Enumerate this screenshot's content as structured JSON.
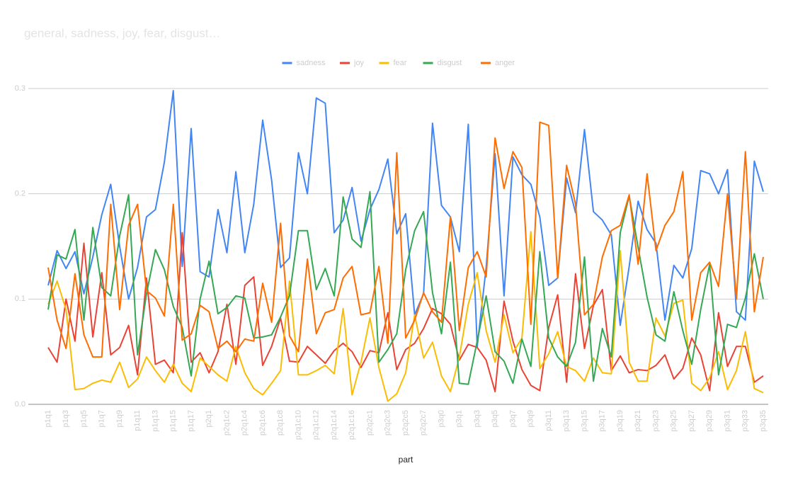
{
  "chart_data": {
    "type": "line",
    "title": "general, sadness, joy, fear, disgust…",
    "x_label": "part",
    "categories": [
      "p1q1",
      null,
      "p1q3",
      null,
      "p1q5",
      null,
      "p1q7",
      null,
      "p1q9",
      null,
      "p1q11",
      null,
      "p1q13",
      null,
      "p1q15",
      null,
      "p1q17",
      null,
      "p2q1",
      null,
      "p2q1c2",
      null,
      "p2q1c4",
      null,
      "p2q1c6",
      null,
      "p2q1c8",
      null,
      "p2q1c10",
      null,
      "p2q1c12",
      null,
      "p2q1c14",
      null,
      "p2q1c16",
      null,
      "p2q2c1",
      null,
      "p2q2c3",
      null,
      "p2q2c5",
      null,
      "p2q2c7",
      null,
      "p3q0",
      null,
      "p3q1",
      null,
      "p3q3",
      null,
      "p3q5",
      null,
      "p3q7",
      null,
      "p3q9",
      null,
      "p3q11",
      null,
      "p3q13",
      null,
      "p3q15",
      null,
      "p3q17",
      null,
      "p3q19",
      null,
      "p3q21",
      null,
      "p3q23",
      null,
      "p3q25",
      null,
      "p3q27",
      null,
      "p3q29",
      null,
      "p3q31",
      null,
      "p3q33",
      null,
      "p3q35"
    ],
    "series": [
      {
        "name": "sadness",
        "color": "#4285f4",
        "values": [
          0.113,
          0.146,
          0.129,
          0.145,
          0.105,
          0.14,
          0.18,
          0.209,
          0.15,
          0.1,
          0.13,
          0.178,
          0.185,
          0.23,
          0.298,
          0.131,
          0.262,
          0.126,
          0.121,
          0.185,
          0.144,
          0.221,
          0.144,
          0.19,
          0.27,
          0.213,
          0.13,
          0.139,
          0.239,
          0.2,
          0.291,
          0.286,
          0.163,
          0.175,
          0.206,
          0.155,
          0.185,
          0.204,
          0.233,
          0.162,
          0.181,
          0.085,
          0.105,
          0.267,
          0.189,
          0.178,
          0.145,
          0.266,
          0.055,
          0.13,
          0.238,
          0.103,
          0.235,
          0.218,
          0.209,
          0.178,
          0.113,
          0.12,
          0.215,
          0.182,
          0.261,
          0.183,
          0.175,
          0.161,
          0.075,
          0.131,
          0.193,
          0.166,
          0.153,
          0.08,
          0.132,
          0.12,
          0.148,
          0.222,
          0.219,
          0.2,
          0.223,
          0.088,
          0.08,
          0.231,
          0.202
        ]
      },
      {
        "name": "joy",
        "color": "#ea4335",
        "values": [
          0.054,
          0.04,
          0.1,
          0.06,
          0.153,
          0.064,
          0.125,
          0.047,
          0.054,
          0.075,
          0.028,
          0.12,
          0.038,
          0.042,
          0.03,
          0.163,
          0.04,
          0.049,
          0.03,
          0.05,
          0.095,
          0.038,
          0.113,
          0.121,
          0.037,
          0.055,
          0.082,
          0.041,
          0.04,
          0.055,
          0.047,
          0.039,
          0.051,
          0.058,
          0.05,
          0.035,
          0.051,
          0.049,
          0.087,
          0.033,
          0.052,
          0.058,
          0.072,
          0.091,
          0.086,
          0.076,
          0.042,
          0.057,
          0.054,
          0.042,
          0.012,
          0.098,
          0.06,
          0.033,
          0.018,
          0.013,
          0.073,
          0.104,
          0.021,
          0.124,
          0.053,
          0.094,
          0.109,
          0.032,
          0.046,
          0.03,
          0.033,
          0.032,
          0.037,
          0.047,
          0.024,
          0.034,
          0.063,
          0.047,
          0.013,
          0.087,
          0.036,
          0.055,
          0.055,
          0.021,
          0.027
        ]
      },
      {
        "name": "fear",
        "color": "#fbbc04",
        "values": [
          0.095,
          0.117,
          0.09,
          0.014,
          0.015,
          0.02,
          0.023,
          0.021,
          0.04,
          0.016,
          0.024,
          0.045,
          0.032,
          0.021,
          0.038,
          0.02,
          0.012,
          0.044,
          0.036,
          0.028,
          0.022,
          0.055,
          0.03,
          0.015,
          0.009,
          0.02,
          0.032,
          0.117,
          0.028,
          0.028,
          0.032,
          0.037,
          0.029,
          0.091,
          0.009,
          0.04,
          0.082,
          0.035,
          0.003,
          0.01,
          0.03,
          0.085,
          0.044,
          0.059,
          0.027,
          0.012,
          0.045,
          0.095,
          0.125,
          0.07,
          0.04,
          0.085,
          0.049,
          0.063,
          0.164,
          0.034,
          0.048,
          0.069,
          0.036,
          0.032,
          0.022,
          0.044,
          0.03,
          0.029,
          0.146,
          0.04,
          0.022,
          0.022,
          0.082,
          0.065,
          0.096,
          0.099,
          0.02,
          0.013,
          0.025,
          0.05,
          0.014,
          0.032,
          0.069,
          0.015,
          0.011
        ]
      },
      {
        "name": "disgust",
        "color": "#34a853",
        "values": [
          0.09,
          0.142,
          0.138,
          0.166,
          0.08,
          0.168,
          0.111,
          0.103,
          0.16,
          0.199,
          0.047,
          0.105,
          0.147,
          0.128,
          0.093,
          0.073,
          0.027,
          0.1,
          0.136,
          0.086,
          0.092,
          0.103,
          0.101,
          0.063,
          0.064,
          0.066,
          0.083,
          0.103,
          0.165,
          0.165,
          0.109,
          0.129,
          0.103,
          0.197,
          0.157,
          0.149,
          0.202,
          0.04,
          0.052,
          0.067,
          0.128,
          0.165,
          0.183,
          0.106,
          0.067,
          0.135,
          0.02,
          0.019,
          0.06,
          0.103,
          0.05,
          0.041,
          0.02,
          0.062,
          0.036,
          0.145,
          0.063,
          0.045,
          0.036,
          0.059,
          0.14,
          0.022,
          0.072,
          0.045,
          0.163,
          0.198,
          0.149,
          0.102,
          0.066,
          0.06,
          0.107,
          0.07,
          0.038,
          0.09,
          0.133,
          0.028,
          0.076,
          0.073,
          0.101,
          0.143,
          0.1
        ]
      },
      {
        "name": "anger",
        "color": "#ff6d01",
        "values": [
          0.13,
          0.08,
          0.053,
          0.124,
          0.066,
          0.045,
          0.045,
          0.19,
          0.09,
          0.17,
          0.19,
          0.108,
          0.101,
          0.084,
          0.19,
          0.061,
          0.067,
          0.094,
          0.088,
          0.053,
          0.06,
          0.05,
          0.062,
          0.06,
          0.115,
          0.078,
          0.172,
          0.065,
          0.05,
          0.138,
          0.067,
          0.087,
          0.09,
          0.12,
          0.131,
          0.085,
          0.087,
          0.131,
          0.058,
          0.239,
          0.063,
          0.08,
          0.106,
          0.088,
          0.078,
          0.178,
          0.07,
          0.13,
          0.145,
          0.121,
          0.253,
          0.205,
          0.24,
          0.225,
          0.076,
          0.268,
          0.265,
          0.12,
          0.227,
          0.19,
          0.085,
          0.095,
          0.14,
          0.165,
          0.17,
          0.199,
          0.133,
          0.219,
          0.146,
          0.17,
          0.183,
          0.221,
          0.08,
          0.125,
          0.135,
          0.112,
          0.2,
          0.1,
          0.24,
          0.088,
          0.14
        ]
      }
    ],
    "ylim": [
      0,
      0.3
    ],
    "yticks": [
      {
        "value": 0,
        "label": "0.0"
      },
      0.1,
      0.2,
      0.3
    ],
    "grid": true,
    "legend": "top"
  }
}
